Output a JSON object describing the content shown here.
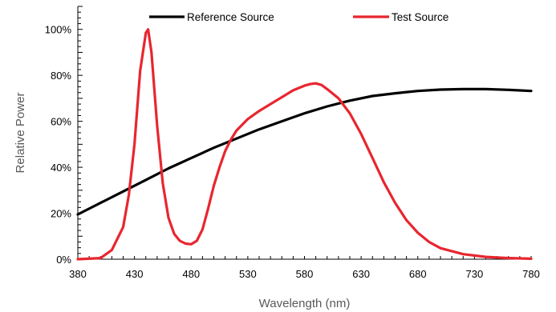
{
  "chart_data": {
    "type": "line",
    "title": "",
    "xlabel": "Wavelength (nm)",
    "ylabel": "Relative Power",
    "xlim": [
      380,
      780
    ],
    "ylim": [
      0,
      1.1
    ],
    "x_ticks": [
      380,
      430,
      480,
      530,
      580,
      630,
      680,
      730,
      780
    ],
    "y_ticks": [
      0,
      0.2,
      0.4,
      0.6,
      0.8,
      1.0
    ],
    "y_tick_labels": [
      "0%",
      "20%",
      "40%",
      "60%",
      "80%",
      "100%"
    ],
    "grid": false,
    "legend": {
      "position": "top",
      "entries": [
        "Reference Source",
        "Test Source"
      ]
    },
    "colors": {
      "reference": "#000000",
      "test": "#e8262f"
    },
    "series": [
      {
        "name": "Reference Source",
        "x": [
          380,
          400,
          420,
          440,
          460,
          480,
          500,
          520,
          540,
          560,
          580,
          600,
          620,
          640,
          660,
          680,
          700,
          720,
          740,
          760,
          780
        ],
        "values": [
          0.195,
          0.245,
          0.295,
          0.345,
          0.395,
          0.44,
          0.485,
          0.525,
          0.565,
          0.6,
          0.635,
          0.665,
          0.69,
          0.71,
          0.722,
          0.732,
          0.738,
          0.74,
          0.74,
          0.737,
          0.732
        ]
      },
      {
        "name": "Test Source",
        "x": [
          380,
          400,
          410,
          420,
          425,
          430,
          435,
          440,
          442,
          445,
          450,
          455,
          460,
          465,
          470,
          475,
          480,
          485,
          490,
          495,
          500,
          505,
          510,
          515,
          520,
          530,
          540,
          550,
          560,
          570,
          580,
          585,
          590,
          595,
          600,
          610,
          620,
          630,
          640,
          650,
          660,
          670,
          680,
          690,
          700,
          720,
          740,
          760,
          780
        ],
        "values": [
          0.0,
          0.005,
          0.04,
          0.14,
          0.28,
          0.5,
          0.82,
          0.985,
          1.0,
          0.9,
          0.58,
          0.33,
          0.18,
          0.11,
          0.08,
          0.068,
          0.065,
          0.08,
          0.13,
          0.22,
          0.32,
          0.4,
          0.47,
          0.52,
          0.56,
          0.61,
          0.645,
          0.675,
          0.705,
          0.735,
          0.755,
          0.762,
          0.765,
          0.758,
          0.74,
          0.7,
          0.635,
          0.545,
          0.44,
          0.335,
          0.245,
          0.17,
          0.115,
          0.075,
          0.048,
          0.022,
          0.01,
          0.005,
          0.002
        ]
      }
    ]
  }
}
